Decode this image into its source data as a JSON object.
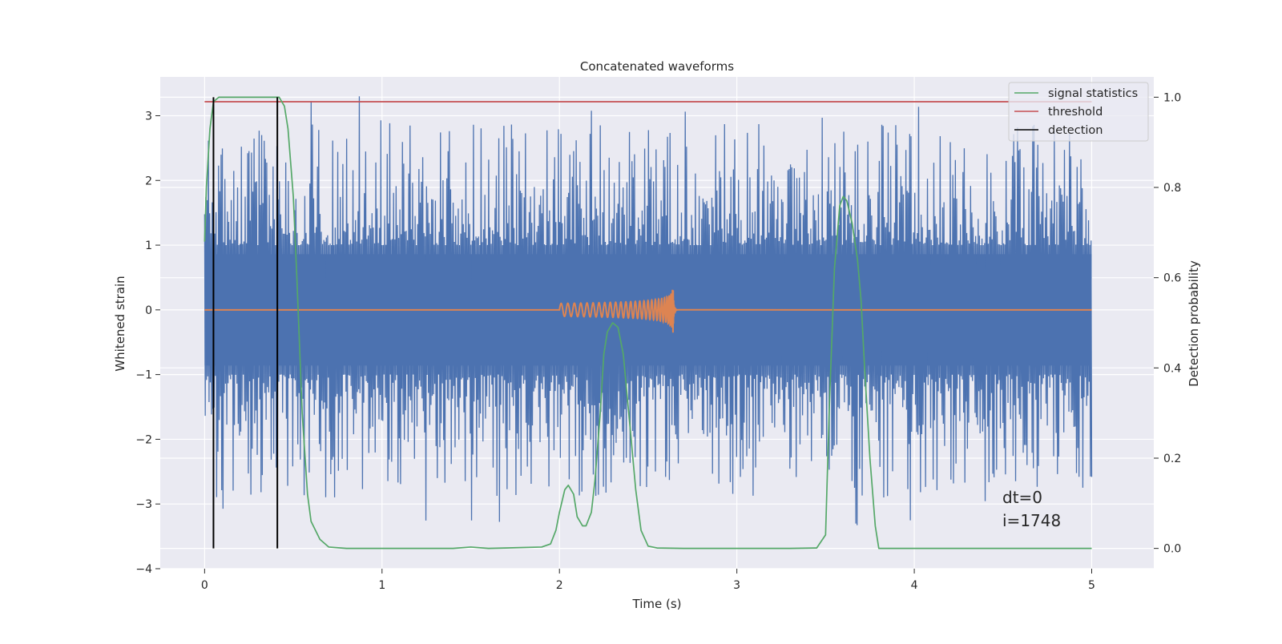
{
  "chart_data": {
    "type": "line",
    "title": "Concatenated waveforms",
    "xlabel": "Time (s)",
    "ylabel_left": "Whitened strain",
    "ylabel_right": "Detection probability",
    "xlim": [
      -0.25,
      5.35
    ],
    "ylim_left": [
      -4.0,
      3.6
    ],
    "ylim_right": [
      -0.045,
      1.045
    ],
    "x_ticks": [
      0,
      1,
      2,
      3,
      4,
      5
    ],
    "x_tick_labels": [
      "0",
      "1",
      "2",
      "3",
      "4",
      "5"
    ],
    "y_left_ticks": [
      -4,
      -3,
      -2,
      -1,
      0,
      1,
      2,
      3
    ],
    "y_left_tick_labels": [
      "−4",
      "−3",
      "−2",
      "−1",
      "0",
      "1",
      "2",
      "3"
    ],
    "y_right_ticks": [
      0.0,
      0.2,
      0.4,
      0.6,
      0.8,
      1.0
    ],
    "y_right_tick_labels": [
      "0.0",
      "0.2",
      "0.4",
      "0.6",
      "0.8",
      "1.0"
    ],
    "grid": true,
    "legend_position": "top-right",
    "colors": {
      "background": "#eaeaf2",
      "grid": "#ffffff",
      "strain": "#4c72b0",
      "template": "#dd8452",
      "signal_statistics": "#55a868",
      "threshold": "#c44e52",
      "detection": "#000000"
    },
    "strain_noise": {
      "x_range": [
        0,
        5
      ],
      "core_amplitude": 0.86,
      "peak_range": [
        -3.5,
        3.3
      ],
      "samples": 1400
    },
    "template": {
      "x_start": 2.0,
      "x_merger": 2.64,
      "amplitude_start": 0.1,
      "amplitude_peak": 0.42
    },
    "series": [
      {
        "name": "signal statistics",
        "axis": "right",
        "x": [
          0.0,
          0.01,
          0.03,
          0.05,
          0.08,
          0.1,
          0.15,
          0.2,
          0.3,
          0.4,
          0.42,
          0.45,
          0.47,
          0.5,
          0.52,
          0.55,
          0.58,
          0.6,
          0.65,
          0.7,
          0.8,
          1.0,
          1.2,
          1.4,
          1.5,
          1.6,
          1.8,
          1.9,
          1.95,
          1.98,
          2.0,
          2.03,
          2.05,
          2.08,
          2.1,
          2.13,
          2.15,
          2.18,
          2.2,
          2.23,
          2.25,
          2.27,
          2.3,
          2.33,
          2.36,
          2.4,
          2.43,
          2.46,
          2.5,
          2.55,
          2.7,
          3.0,
          3.3,
          3.45,
          3.5,
          3.52,
          3.55,
          3.58,
          3.6,
          3.62,
          3.65,
          3.68,
          3.7,
          3.72,
          3.75,
          3.78,
          3.8,
          4.0,
          4.5,
          5.0
        ],
        "values": [
          0.68,
          0.8,
          0.93,
          0.99,
          1.0,
          1.0,
          1.0,
          1.0,
          1.0,
          1.0,
          1.0,
          0.98,
          0.93,
          0.78,
          0.6,
          0.3,
          0.12,
          0.06,
          0.02,
          0.003,
          0.0,
          0.0,
          0.0,
          0.0,
          0.003,
          0.0,
          0.002,
          0.003,
          0.01,
          0.04,
          0.08,
          0.13,
          0.14,
          0.12,
          0.07,
          0.05,
          0.05,
          0.08,
          0.15,
          0.3,
          0.43,
          0.48,
          0.5,
          0.49,
          0.43,
          0.26,
          0.13,
          0.04,
          0.005,
          0.001,
          0.0,
          0.0,
          0.0,
          0.001,
          0.03,
          0.3,
          0.62,
          0.76,
          0.78,
          0.77,
          0.72,
          0.64,
          0.55,
          0.4,
          0.2,
          0.05,
          0.0,
          0.0,
          0.0,
          0.0
        ]
      },
      {
        "name": "threshold",
        "axis": "right",
        "x": [
          0.0,
          5.0
        ],
        "values": [
          0.99,
          0.99
        ]
      },
      {
        "name": "detection",
        "axis": "right",
        "x": [
          0.05,
          0.41
        ],
        "values": [
          1.0,
          1.0
        ]
      }
    ],
    "annotations": [
      "dt=0",
      "i=1748"
    ]
  }
}
